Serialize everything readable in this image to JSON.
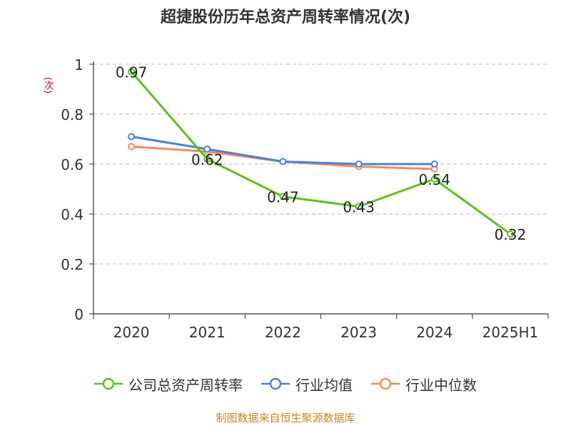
{
  "title": "超捷股份历年总资产周转率情况(次)",
  "source_note": "制图数据来自恒生聚源数据库",
  "chart_data": {
    "type": "line",
    "title": "超捷股份历年总资产周转率情况(次)",
    "ylabel": "(次)",
    "xlabel": "",
    "categories": [
      "2020",
      "2021",
      "2022",
      "2023",
      "2024",
      "2025H1"
    ],
    "ylim": [
      0,
      1
    ],
    "yticks": [
      0,
      0.2,
      0.4,
      0.6,
      0.8,
      1
    ],
    "ytick_labels": [
      "0",
      "0.2",
      "0.4",
      "0.6",
      "0.8",
      "1"
    ],
    "grid": "horizontal dashed",
    "legend_position": "bottom",
    "series": [
      {
        "name": "公司总资产周转率",
        "color": "#5cc21f",
        "values": [
          0.97,
          0.62,
          0.47,
          0.43,
          0.54,
          0.32
        ],
        "data_labels": [
          "0.97",
          "0.62",
          "0.47",
          "0.43",
          "0.54",
          "0.32"
        ]
      },
      {
        "name": "行业均值",
        "color": "#4f7fd8",
        "values": [
          0.71,
          0.66,
          0.61,
          0.6,
          0.6,
          null
        ]
      },
      {
        "name": "行业中位数",
        "color": "#f28c5a",
        "values": [
          0.67,
          0.65,
          0.61,
          0.59,
          0.58,
          null
        ]
      }
    ]
  }
}
